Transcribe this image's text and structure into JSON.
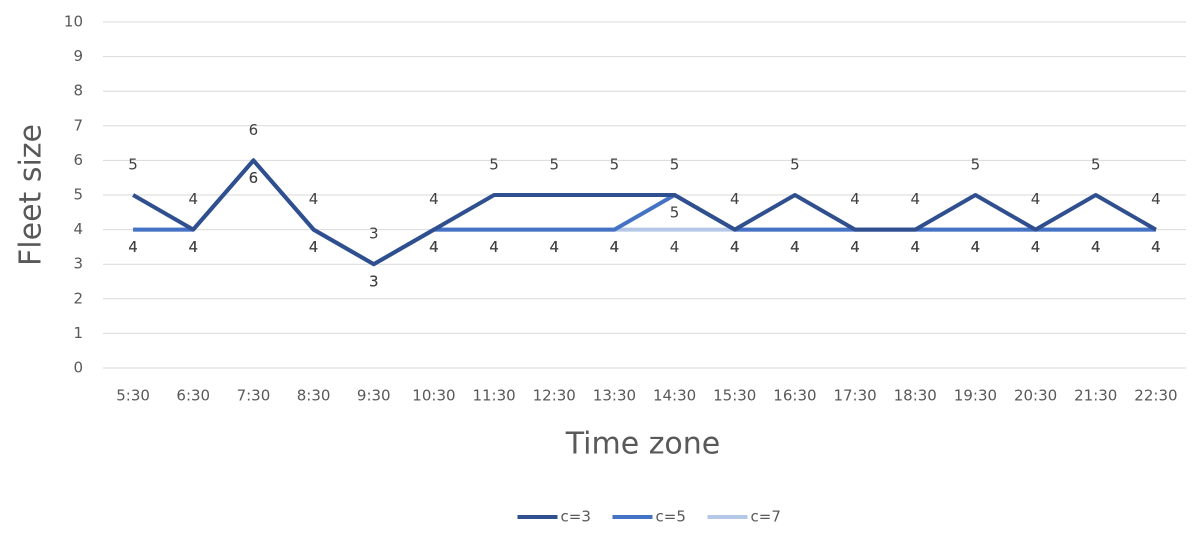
{
  "chart_data": {
    "type": "line",
    "x_label": "Time zone",
    "y_label": "Fleet size",
    "categories": [
      "5:30",
      "6:30",
      "7:30",
      "8:30",
      "9:30",
      "10:30",
      "11:30",
      "12:30",
      "13:30",
      "14:30",
      "15:30",
      "16:30",
      "17:30",
      "18:30",
      "19:30",
      "20:30",
      "21:30",
      "22:30"
    ],
    "series": [
      {
        "name": "c=3",
        "color": "#2f4f8f",
        "values": [
          5,
          4,
          6,
          4,
          3,
          4,
          5,
          5,
          5,
          5,
          4,
          5,
          4,
          4,
          5,
          4,
          5,
          4
        ]
      },
      {
        "name": "c=5",
        "color": "#4472c4",
        "values": [
          4,
          4,
          6,
          4,
          3,
          4,
          4,
          4,
          4,
          5,
          4,
          4,
          4,
          4,
          4,
          4,
          4,
          4
        ]
      },
      {
        "name": "c=7",
        "color": "#b4c7e7",
        "values": [
          4,
          4,
          6,
          4,
          3,
          4,
          4,
          4,
          4,
          4,
          4,
          4,
          4,
          4,
          4,
          4,
          4,
          4
        ]
      }
    ],
    "ylim": [
      0,
      10
    ],
    "yticks": [
      0,
      1,
      2,
      3,
      4,
      5,
      6,
      7,
      8,
      9,
      10
    ],
    "grid": true,
    "legend": "bottom"
  }
}
